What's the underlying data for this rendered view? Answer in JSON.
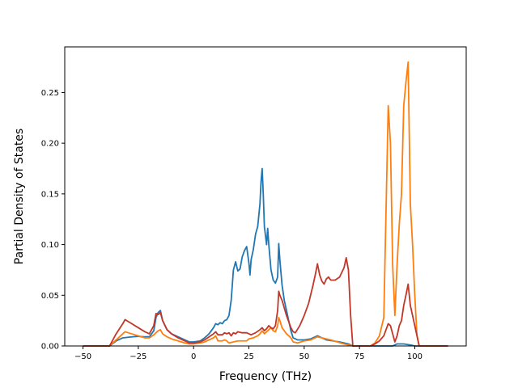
{
  "chart_data": {
    "type": "line",
    "title": "",
    "xlabel": "Frequency (THz)",
    "ylabel": "Partial Density of States",
    "xlim": [
      -58.25,
      123.25
    ],
    "ylim": [
      0.0,
      0.295
    ],
    "xticks": [
      -50,
      -25,
      0,
      25,
      50,
      75,
      100
    ],
    "xtick_labels": [
      "−50",
      "−25",
      "0",
      "25",
      "50",
      "75",
      "100"
    ],
    "yticks": [
      0.0,
      0.05,
      0.1,
      0.15,
      0.2,
      0.25
    ],
    "ytick_labels": [
      "0.00",
      "0.05",
      "0.10",
      "0.15",
      "0.20",
      "0.25"
    ],
    "grid": false,
    "legend": "none",
    "series": [
      {
        "color": "#1f77b4",
        "points": [
          [
            -50,
            0.0
          ],
          [
            -38,
            0.0
          ],
          [
            -35,
            0.005
          ],
          [
            -32,
            0.008
          ],
          [
            -28,
            0.009
          ],
          [
            -25,
            0.0095
          ],
          [
            -22,
            0.009
          ],
          [
            -20,
            0.009
          ],
          [
            -18,
            0.015
          ],
          [
            -17,
            0.028
          ],
          [
            -16,
            0.033
          ],
          [
            -15,
            0.035
          ],
          [
            -14,
            0.025
          ],
          [
            -12,
            0.016
          ],
          [
            -10,
            0.012
          ],
          [
            -7,
            0.009
          ],
          [
            -4,
            0.006
          ],
          [
            -2,
            0.004
          ],
          [
            0,
            0.004
          ],
          [
            3,
            0.005
          ],
          [
            5,
            0.008
          ],
          [
            7,
            0.012
          ],
          [
            9,
            0.018
          ],
          [
            10,
            0.022
          ],
          [
            11,
            0.021
          ],
          [
            12,
            0.023
          ],
          [
            13,
            0.022
          ],
          [
            14,
            0.025
          ],
          [
            15,
            0.026
          ],
          [
            16,
            0.03
          ],
          [
            17,
            0.045
          ],
          [
            18,
            0.075
          ],
          [
            19,
            0.083
          ],
          [
            20,
            0.074
          ],
          [
            21,
            0.076
          ],
          [
            22,
            0.088
          ],
          [
            23,
            0.094
          ],
          [
            24,
            0.098
          ],
          [
            25,
            0.082
          ],
          [
            25.5,
            0.07
          ],
          [
            26,
            0.085
          ],
          [
            27,
            0.095
          ],
          [
            28,
            0.11
          ],
          [
            29,
            0.118
          ],
          [
            30,
            0.14
          ],
          [
            30.5,
            0.162
          ],
          [
            31,
            0.175
          ],
          [
            31.5,
            0.15
          ],
          [
            32,
            0.118
          ],
          [
            33,
            0.1
          ],
          [
            33.5,
            0.116
          ],
          [
            34,
            0.1
          ],
          [
            35,
            0.075
          ],
          [
            36,
            0.065
          ],
          [
            37,
            0.062
          ],
          [
            38,
            0.068
          ],
          [
            38.5,
            0.101
          ],
          [
            39,
            0.085
          ],
          [
            40,
            0.06
          ],
          [
            41,
            0.045
          ],
          [
            42,
            0.035
          ],
          [
            43,
            0.025
          ],
          [
            44,
            0.015
          ],
          [
            45,
            0.008
          ],
          [
            47,
            0.006
          ],
          [
            50,
            0.006
          ],
          [
            53,
            0.007
          ],
          [
            55,
            0.009
          ],
          [
            56,
            0.01
          ],
          [
            58,
            0.008
          ],
          [
            60,
            0.006
          ],
          [
            63,
            0.005
          ],
          [
            66,
            0.004
          ],
          [
            68,
            0.003
          ],
          [
            70,
            0.002
          ],
          [
            72,
            0.0
          ],
          [
            90,
            0.0
          ],
          [
            92,
            0.002
          ],
          [
            95,
            0.002
          ],
          [
            98,
            0.001
          ],
          [
            100,
            0.0
          ],
          [
            115,
            0.0
          ]
        ]
      },
      {
        "color": "#ff7f0e",
        "points": [
          [
            -50,
            0.0
          ],
          [
            -38,
            0.0
          ],
          [
            -35,
            0.006
          ],
          [
            -32,
            0.012
          ],
          [
            -31,
            0.014
          ],
          [
            -28,
            0.012
          ],
          [
            -25,
            0.01
          ],
          [
            -22,
            0.008
          ],
          [
            -20,
            0.008
          ],
          [
            -18,
            0.011
          ],
          [
            -16,
            0.015
          ],
          [
            -15,
            0.016
          ],
          [
            -14,
            0.012
          ],
          [
            -12,
            0.009
          ],
          [
            -10,
            0.007
          ],
          [
            -7,
            0.005
          ],
          [
            -4,
            0.003
          ],
          [
            -2,
            0.002
          ],
          [
            0,
            0.002
          ],
          [
            3,
            0.003
          ],
          [
            5,
            0.004
          ],
          [
            7,
            0.006
          ],
          [
            9,
            0.008
          ],
          [
            10,
            0.01
          ],
          [
            11,
            0.005
          ],
          [
            13,
            0.005
          ],
          [
            14,
            0.006
          ],
          [
            15,
            0.005
          ],
          [
            16,
            0.003
          ],
          [
            18,
            0.004
          ],
          [
            20,
            0.005
          ],
          [
            22,
            0.005
          ],
          [
            24,
            0.005
          ],
          [
            25,
            0.007
          ],
          [
            27,
            0.008
          ],
          [
            28,
            0.009
          ],
          [
            29,
            0.01
          ],
          [
            30,
            0.012
          ],
          [
            31,
            0.015
          ],
          [
            32,
            0.012
          ],
          [
            33,
            0.014
          ],
          [
            34,
            0.016
          ],
          [
            35,
            0.018
          ],
          [
            36,
            0.015
          ],
          [
            37,
            0.014
          ],
          [
            38,
            0.02
          ],
          [
            38.5,
            0.028
          ],
          [
            39,
            0.025
          ],
          [
            40,
            0.018
          ],
          [
            42,
            0.012
          ],
          [
            44,
            0.008
          ],
          [
            45,
            0.004
          ],
          [
            47,
            0.003
          ],
          [
            50,
            0.005
          ],
          [
            53,
            0.006
          ],
          [
            56,
            0.009
          ],
          [
            58,
            0.008
          ],
          [
            62,
            0.006
          ],
          [
            65,
            0.004
          ],
          [
            68,
            0.002
          ],
          [
            70,
            0.001
          ],
          [
            72,
            0.0
          ],
          [
            80,
            0.0
          ],
          [
            82,
            0.003
          ],
          [
            84,
            0.01
          ],
          [
            86,
            0.028
          ],
          [
            88,
            0.237
          ],
          [
            89,
            0.2
          ],
          [
            90,
            0.08
          ],
          [
            91,
            0.03
          ],
          [
            92,
            0.08
          ],
          [
            93,
            0.12
          ],
          [
            94,
            0.15
          ],
          [
            95,
            0.237
          ],
          [
            96,
            0.26
          ],
          [
            97,
            0.28
          ],
          [
            98,
            0.14
          ],
          [
            99,
            0.1
          ],
          [
            100,
            0.05
          ],
          [
            101,
            0.01
          ],
          [
            102,
            0.0
          ],
          [
            115,
            0.0
          ]
        ]
      },
      {
        "color": "#c23728",
        "points": [
          [
            -50,
            0.0
          ],
          [
            -38,
            0.0
          ],
          [
            -35,
            0.012
          ],
          [
            -32,
            0.022
          ],
          [
            -31,
            0.026
          ],
          [
            -28,
            0.022
          ],
          [
            -25,
            0.018
          ],
          [
            -22,
            0.014
          ],
          [
            -20,
            0.012
          ],
          [
            -18,
            0.02
          ],
          [
            -17,
            0.032
          ],
          [
            -16,
            0.031
          ],
          [
            -15,
            0.033
          ],
          [
            -14,
            0.025
          ],
          [
            -12,
            0.016
          ],
          [
            -10,
            0.012
          ],
          [
            -7,
            0.008
          ],
          [
            -4,
            0.005
          ],
          [
            -2,
            0.003
          ],
          [
            0,
            0.003
          ],
          [
            3,
            0.004
          ],
          [
            5,
            0.006
          ],
          [
            7,
            0.009
          ],
          [
            9,
            0.012
          ],
          [
            10,
            0.014
          ],
          [
            11,
            0.011
          ],
          [
            13,
            0.011
          ],
          [
            14,
            0.013
          ],
          [
            15,
            0.012
          ],
          [
            16,
            0.013
          ],
          [
            17,
            0.01
          ],
          [
            18,
            0.013
          ],
          [
            19,
            0.012
          ],
          [
            20,
            0.014
          ],
          [
            22,
            0.013
          ],
          [
            24,
            0.013
          ],
          [
            26,
            0.011
          ],
          [
            28,
            0.013
          ],
          [
            30,
            0.016
          ],
          [
            31,
            0.018
          ],
          [
            32,
            0.015
          ],
          [
            33,
            0.017
          ],
          [
            34,
            0.02
          ],
          [
            35,
            0.018
          ],
          [
            36,
            0.017
          ],
          [
            37,
            0.02
          ],
          [
            38,
            0.035
          ],
          [
            38.5,
            0.054
          ],
          [
            39,
            0.05
          ],
          [
            40,
            0.045
          ],
          [
            42,
            0.03
          ],
          [
            44,
            0.018
          ],
          [
            45,
            0.014
          ],
          [
            46,
            0.013
          ],
          [
            48,
            0.02
          ],
          [
            50,
            0.03
          ],
          [
            52,
            0.042
          ],
          [
            54,
            0.06
          ],
          [
            55,
            0.07
          ],
          [
            56,
            0.081
          ],
          [
            57,
            0.07
          ],
          [
            58,
            0.064
          ],
          [
            59,
            0.061
          ],
          [
            60,
            0.066
          ],
          [
            61,
            0.068
          ],
          [
            62,
            0.065
          ],
          [
            64,
            0.065
          ],
          [
            66,
            0.068
          ],
          [
            68,
            0.077
          ],
          [
            69,
            0.087
          ],
          [
            70,
            0.075
          ],
          [
            71,
            0.03
          ],
          [
            72,
            0.0
          ],
          [
            80,
            0.0
          ],
          [
            82,
            0.002
          ],
          [
            84,
            0.005
          ],
          [
            86,
            0.01
          ],
          [
            88,
            0.022
          ],
          [
            89,
            0.02
          ],
          [
            90,
            0.012
          ],
          [
            91,
            0.004
          ],
          [
            92,
            0.01
          ],
          [
            93,
            0.02
          ],
          [
            94,
            0.025
          ],
          [
            95,
            0.04
          ],
          [
            96,
            0.05
          ],
          [
            97,
            0.061
          ],
          [
            98,
            0.04
          ],
          [
            99,
            0.03
          ],
          [
            100,
            0.02
          ],
          [
            101,
            0.01
          ],
          [
            102,
            0.0
          ],
          [
            115,
            0.0
          ]
        ]
      }
    ]
  }
}
